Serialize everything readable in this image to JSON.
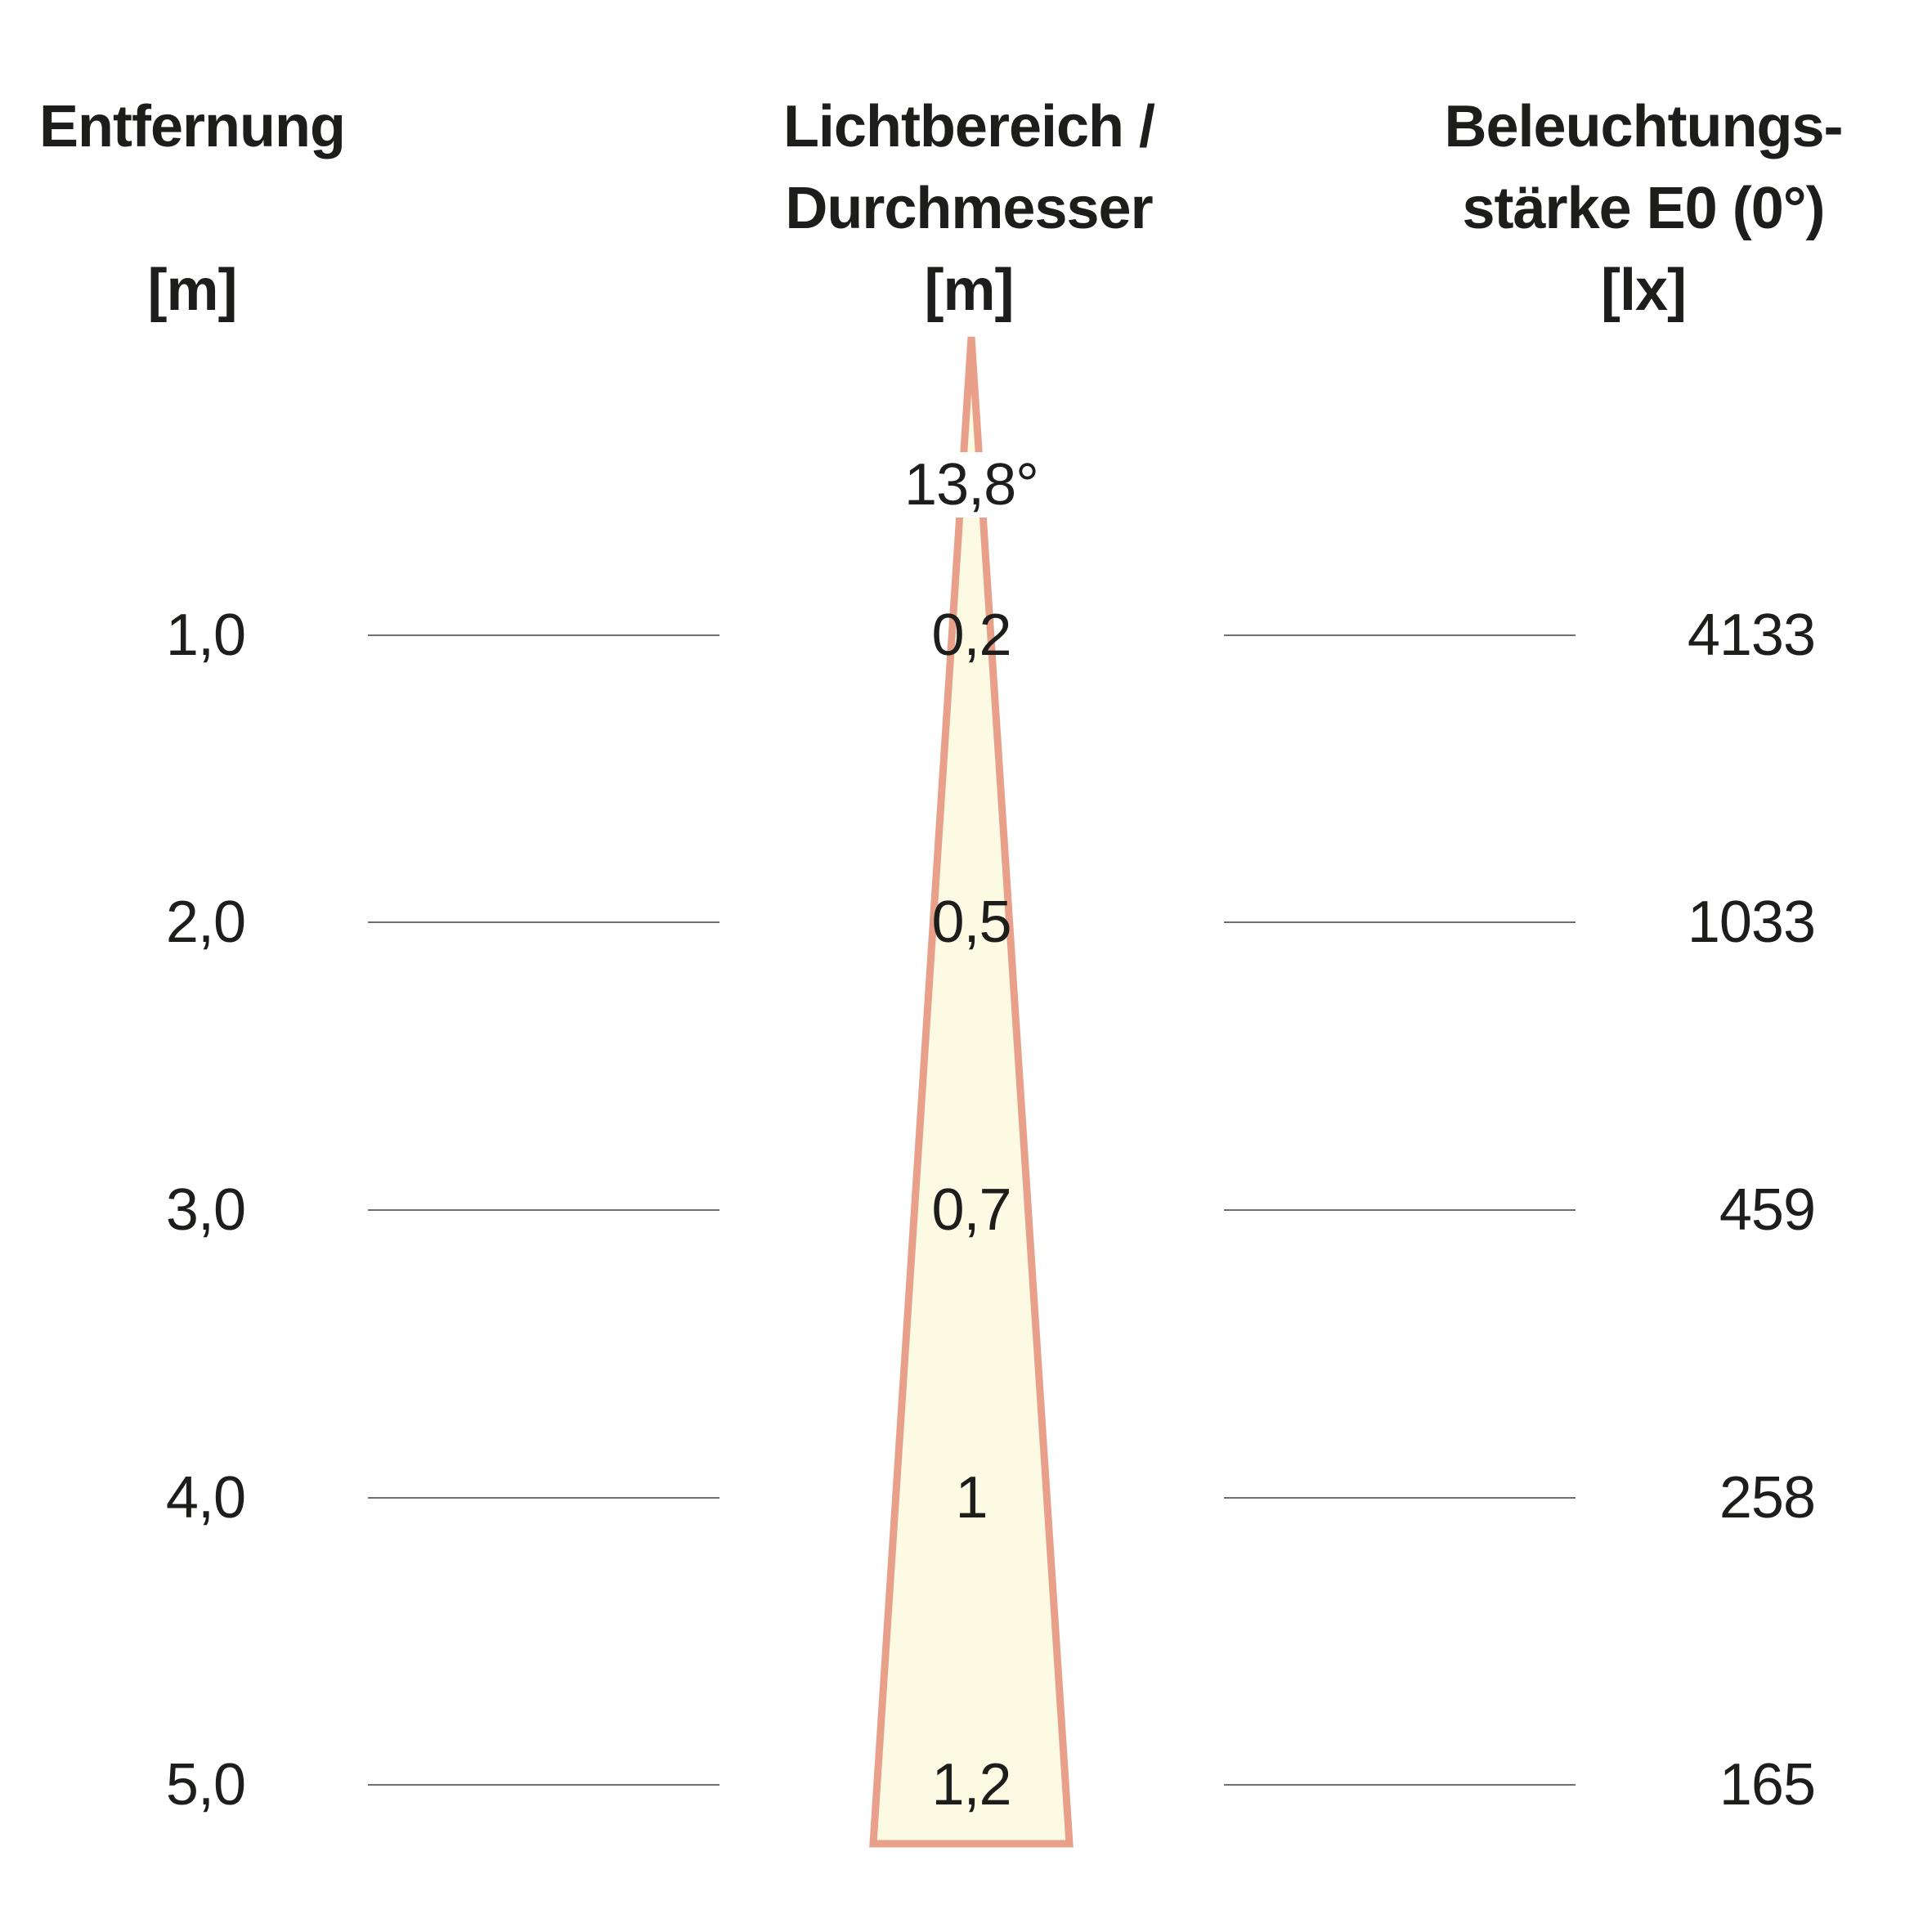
{
  "headers": {
    "distance": {
      "title": "Entfernung",
      "unit": "[m]"
    },
    "diameter": {
      "title_line1": "Lichtbereich /",
      "title_line2": "Durchmesser",
      "unit": "[m]"
    },
    "illuminance": {
      "title_line1": "Beleuchtungs-",
      "title_line2": "stärke E0 (0°)",
      "unit": "[lx]"
    }
  },
  "beam_angle": "13,8°",
  "rows": [
    {
      "distance": "1,0",
      "diameter": "0,2",
      "illuminance": "4133"
    },
    {
      "distance": "2,0",
      "diameter": "0,5",
      "illuminance": "1033"
    },
    {
      "distance": "3,0",
      "diameter": "0,7",
      "illuminance": "459"
    },
    {
      "distance": "4,0",
      "diameter": "1",
      "illuminance": "258"
    },
    {
      "distance": "5,0",
      "diameter": "1,2",
      "illuminance": "165"
    }
  ],
  "colors": {
    "beam_fill": "#fdfae3",
    "beam_edge": "#e8a08a",
    "guide_line": "#6f6f6f",
    "text": "#1d1d1b"
  }
}
